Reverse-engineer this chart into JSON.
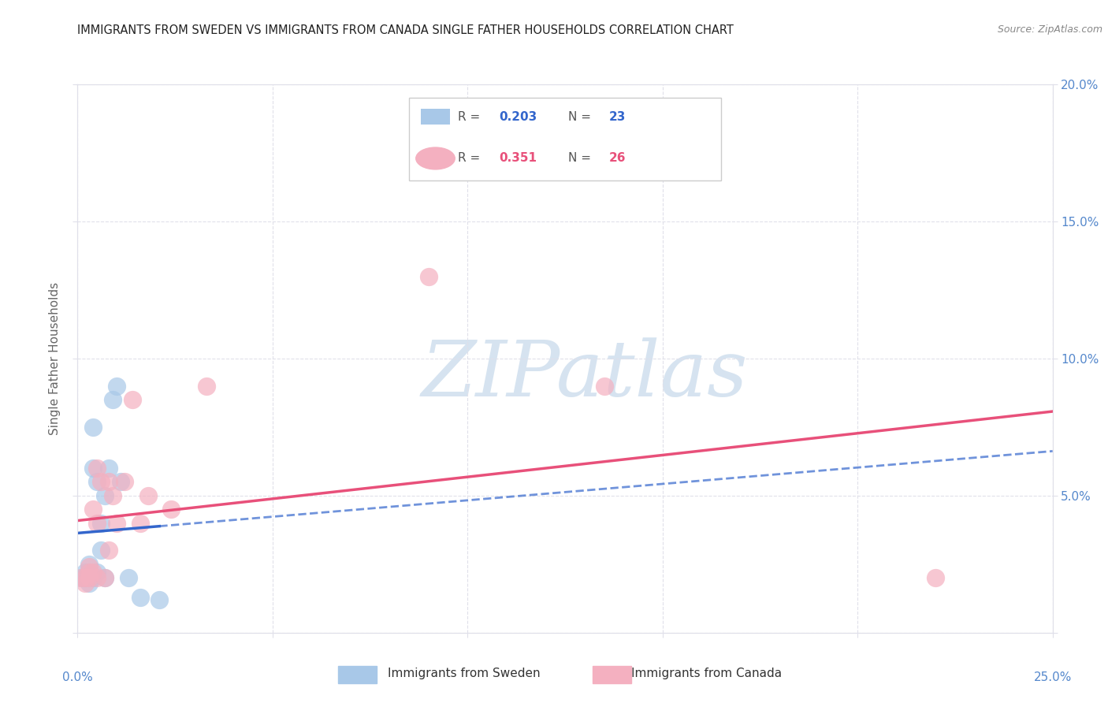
{
  "title": "IMMIGRANTS FROM SWEDEN VS IMMIGRANTS FROM CANADA SINGLE FATHER HOUSEHOLDS CORRELATION CHART",
  "source": "Source: ZipAtlas.com",
  "ylabel": "Single Father Households",
  "xlim": [
    0.0,
    0.25
  ],
  "ylim": [
    0.0,
    0.2
  ],
  "xticks": [
    0.0,
    0.05,
    0.1,
    0.15,
    0.2,
    0.25
  ],
  "yticks": [
    0.0,
    0.05,
    0.1,
    0.15,
    0.2
  ],
  "xticklabels": [
    "0.0%",
    "",
    "",
    "",
    "",
    "25.0%"
  ],
  "left_yticklabels": [
    "",
    "",
    "",
    "",
    ""
  ],
  "right_yticklabels": [
    "",
    "5.0%",
    "10.0%",
    "15.0%",
    "20.0%"
  ],
  "sweden_color": "#a8c8e8",
  "canada_color": "#f4b0c0",
  "sweden_line_color": "#3366cc",
  "canada_line_color": "#e8507a",
  "sweden_label": "Immigrants from Sweden",
  "canada_label": "Immigrants from Canada",
  "sweden_R": 0.203,
  "sweden_N": 23,
  "canada_R": 0.351,
  "canada_N": 26,
  "watermark": "ZIPatlas",
  "sweden_x": [
    0.001,
    0.002,
    0.002,
    0.003,
    0.003,
    0.003,
    0.003,
    0.004,
    0.004,
    0.004,
    0.005,
    0.005,
    0.006,
    0.006,
    0.007,
    0.007,
    0.008,
    0.009,
    0.01,
    0.011,
    0.013,
    0.016,
    0.021
  ],
  "sweden_y": [
    0.02,
    0.02,
    0.022,
    0.018,
    0.02,
    0.022,
    0.025,
    0.02,
    0.06,
    0.075,
    0.022,
    0.055,
    0.03,
    0.04,
    0.02,
    0.05,
    0.06,
    0.085,
    0.09,
    0.055,
    0.02,
    0.013,
    0.012
  ],
  "canada_x": [
    0.001,
    0.002,
    0.002,
    0.003,
    0.003,
    0.003,
    0.004,
    0.004,
    0.005,
    0.005,
    0.005,
    0.006,
    0.007,
    0.008,
    0.008,
    0.009,
    0.01,
    0.012,
    0.014,
    0.016,
    0.018,
    0.024,
    0.033,
    0.09,
    0.135,
    0.22
  ],
  "canada_y": [
    0.02,
    0.018,
    0.02,
    0.02,
    0.022,
    0.024,
    0.022,
    0.045,
    0.02,
    0.04,
    0.06,
    0.055,
    0.02,
    0.03,
    0.055,
    0.05,
    0.04,
    0.055,
    0.085,
    0.04,
    0.05,
    0.045,
    0.09,
    0.13,
    0.09,
    0.02
  ],
  "background_color": "#ffffff",
  "grid_color": "#e0e0ea",
  "tick_color": "#5588cc",
  "right_tick_labels_5": "5.0%",
  "right_tick_labels_10": "10.0%",
  "right_tick_labels_15": "15.0%",
  "right_tick_labels_20": "20.0%"
}
